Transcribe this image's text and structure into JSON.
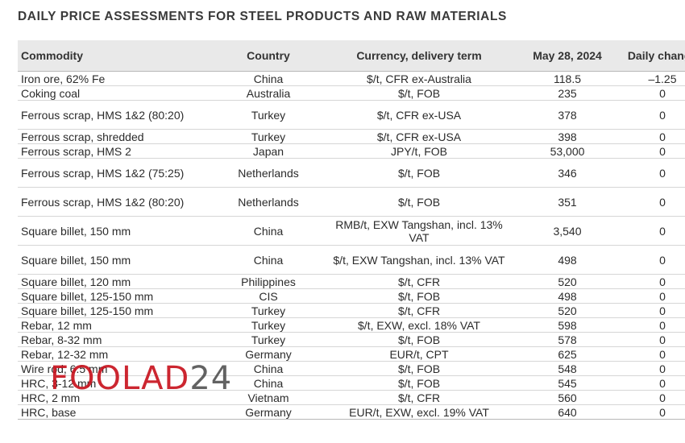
{
  "title": "DAILY PRICE ASSESSMENTS FOR STEEL PRODUCTS AND RAW MATERIALS",
  "table": {
    "headers": {
      "commodity": "Commodity",
      "country": "Country",
      "currency": "Currency, delivery term",
      "date": "May 28, 2024",
      "change": "Daily change"
    },
    "rows": [
      {
        "commodity": "Iron ore, 62% Fe",
        "country": "China",
        "currency": "$/t, CFR ex-Australia",
        "value": "118.5",
        "change": "–1.25"
      },
      {
        "commodity": "Coking coal",
        "country": "Australia",
        "currency": "$/t, FOB",
        "value": "235",
        "change": "0"
      },
      {
        "commodity": "Ferrous scrap, HMS 1&2 (80:20)",
        "country": "Turkey",
        "currency": "$/t, CFR ex-USA",
        "value": "378",
        "change": "0"
      },
      {
        "commodity": "Ferrous scrap, shredded",
        "country": "Turkey",
        "currency": "$/t, CFR ex-USA",
        "value": "398",
        "change": "0"
      },
      {
        "commodity": "Ferrous scrap, HMS 2",
        "country": "Japan",
        "currency": "JPY/t, FOB",
        "value": "53,000",
        "change": "0"
      },
      {
        "commodity": "Ferrous scrap, HMS 1&2 (75:25)",
        "country": "Netherlands",
        "currency": "$/t, FOB",
        "value": "346",
        "change": "0"
      },
      {
        "commodity": "Ferrous scrap, HMS 1&2 (80:20)",
        "country": "Netherlands",
        "currency": "$/t, FOB",
        "value": "351",
        "change": "0"
      },
      {
        "commodity": "Square billet, 150 mm",
        "country": "China",
        "currency": "RMB/t, EXW Tangshan, incl. 13% VAT",
        "value": "3,540",
        "change": "0"
      },
      {
        "commodity": "Square billet, 150 mm",
        "country": "China",
        "currency": "$/t, EXW Tangshan, incl. 13% VAT",
        "value": "498",
        "change": "0"
      },
      {
        "commodity": "Square billet, 120 mm",
        "country": "Philippines",
        "currency": "$/t, CFR",
        "value": "520",
        "change": "0"
      },
      {
        "commodity": "Square billet, 125-150 mm",
        "country": "CIS",
        "currency": "$/t, FOB",
        "value": "498",
        "change": "0"
      },
      {
        "commodity": "Square billet, 125-150 mm",
        "country": "Turkey",
        "currency": "$/t, CFR",
        "value": "520",
        "change": "0"
      },
      {
        "commodity": "Rebar, 12 mm",
        "country": "Turkey",
        "currency": "$/t, EXW, excl. 18% VAT",
        "value": "598",
        "change": "0"
      },
      {
        "commodity": "Rebar, 8-32 mm",
        "country": "Turkey",
        "currency": "$/t, FOB",
        "value": "578",
        "change": "0"
      },
      {
        "commodity": "Rebar, 12-32 mm",
        "country": "Germany",
        "currency": "EUR/t, CPT",
        "value": "625",
        "change": "0"
      },
      {
        "commodity": "Wire rod, 6.5 mm",
        "country": "China",
        "currency": "$/t, FOB",
        "value": "548",
        "change": "0"
      },
      {
        "commodity": "HRC, 3-12 mm",
        "country": "China",
        "currency": "$/t, FOB",
        "value": "545",
        "change": "0"
      },
      {
        "commodity": "HRC, 2 mm",
        "country": "Vietnam",
        "currency": "$/t, CFR",
        "value": "560",
        "change": "0"
      },
      {
        "commodity": "HRC, base",
        "country": "Germany",
        "currency": "EUR/t, EXW, excl. 19% VAT",
        "value": "640",
        "change": "0"
      }
    ]
  },
  "watermark": {
    "part1": "FOOLAD",
    "part2": "24"
  },
  "colors": {
    "header_bg": "#e9e9e9",
    "watermark_red": "#c8141e"
  }
}
